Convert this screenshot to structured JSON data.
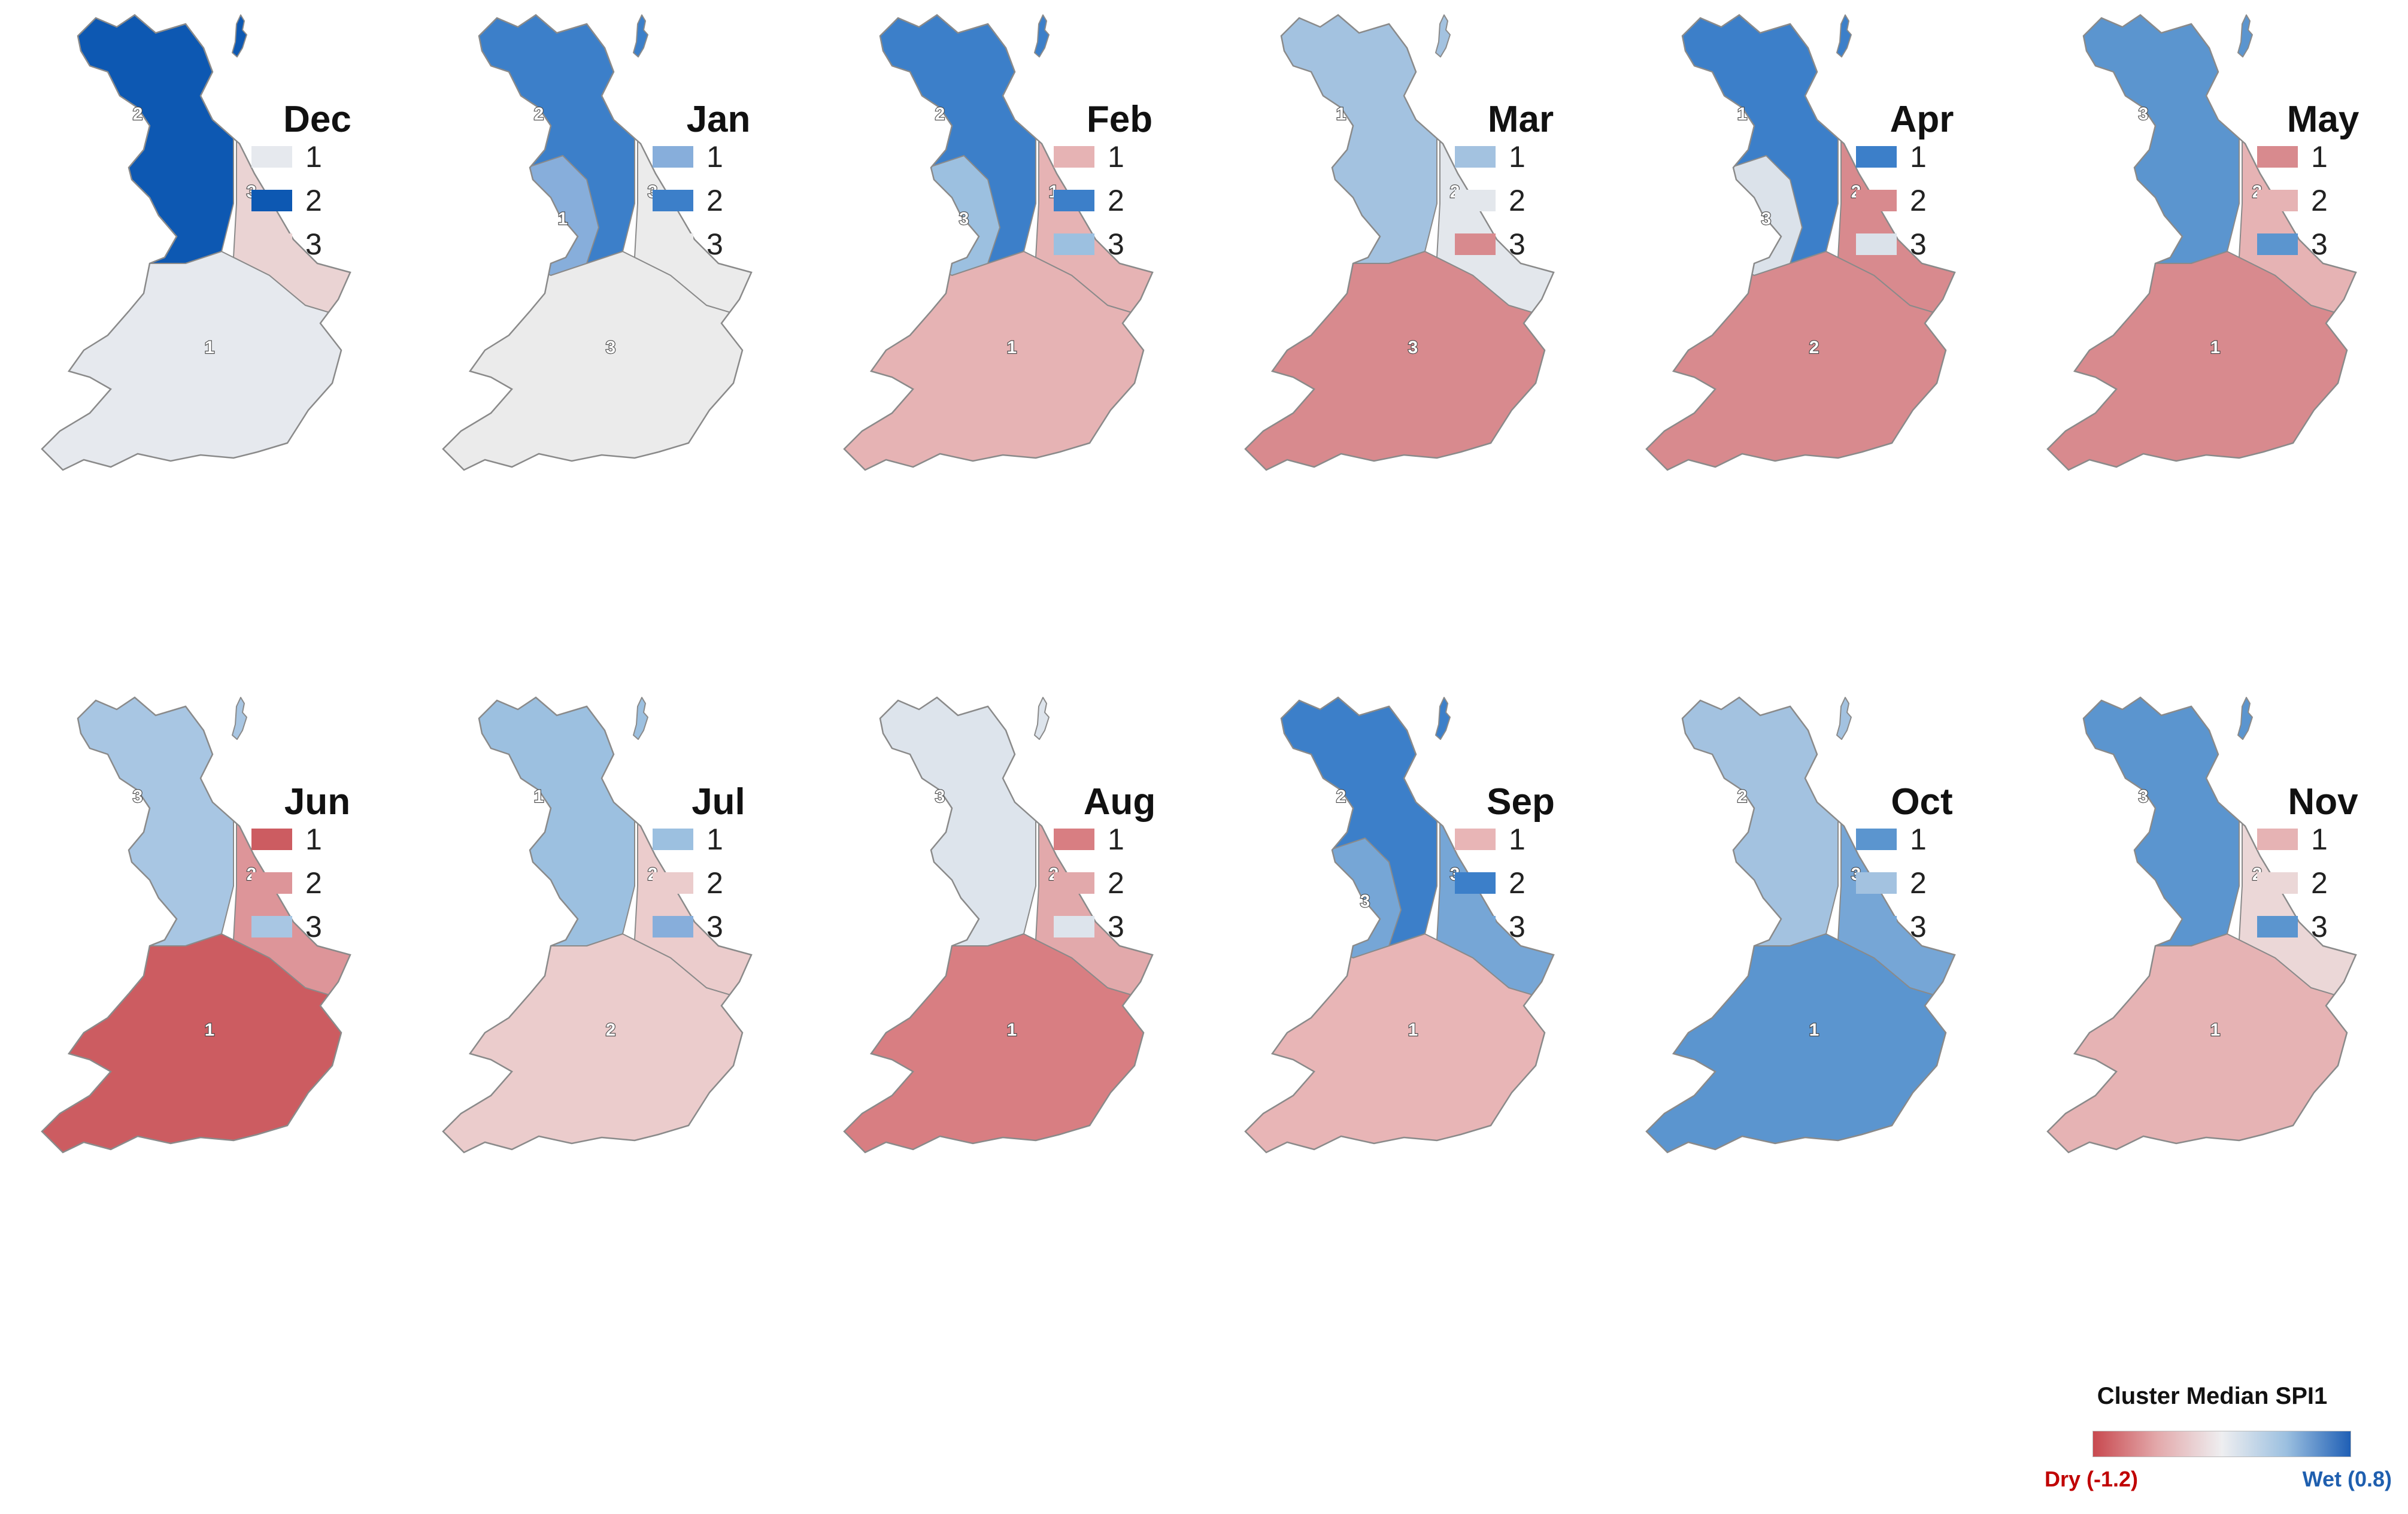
{
  "colors": {
    "dry": "#c8494f",
    "wet": "#1f5fb5",
    "outline": "#8a8a8a"
  },
  "panels": [
    {
      "month": "Dec",
      "legend": [
        {
          "n": "1",
          "color": "#e6e9ee"
        },
        {
          "n": "2",
          "color": "#0d58b2"
        },
        {
          "n": "3",
          "color": "#ead3d3"
        }
      ],
      "regions": {
        "north": "2",
        "east": "3",
        "south": "1"
      }
    },
    {
      "month": "Jan",
      "legend": [
        {
          "n": "1",
          "color": "#87aedb"
        },
        {
          "n": "2",
          "color": "#3c7fc9"
        },
        {
          "n": "3",
          "color": "#ebebeb"
        }
      ],
      "regions": {
        "north": "2",
        "east": "3",
        "south": "3",
        "west": "1"
      }
    },
    {
      "month": "Feb",
      "legend": [
        {
          "n": "1",
          "color": "#e6b3b4"
        },
        {
          "n": "2",
          "color": "#3c7fc9"
        },
        {
          "n": "3",
          "color": "#9cc0e0"
        }
      ],
      "regions": {
        "north": "2",
        "east": "1",
        "south": "1",
        "west": "3"
      }
    },
    {
      "month": "Mar",
      "legend": [
        {
          "n": "1",
          "color": "#a3c2e0"
        },
        {
          "n": "2",
          "color": "#e3e7ec"
        },
        {
          "n": "3",
          "color": "#d88a8e"
        }
      ],
      "regions": {
        "north": "1",
        "east": "2",
        "south": "3"
      }
    },
    {
      "month": "Apr",
      "legend": [
        {
          "n": "1",
          "color": "#3c7fc9"
        },
        {
          "n": "2",
          "color": "#d88a8e"
        },
        {
          "n": "3",
          "color": "#dbe2ea"
        }
      ],
      "regions": {
        "north": "1",
        "east": "2",
        "south": "2",
        "west": "3"
      }
    },
    {
      "month": "May",
      "legend": [
        {
          "n": "1",
          "color": "#d88a8e"
        },
        {
          "n": "2",
          "color": "#e6b3b4"
        },
        {
          "n": "3",
          "color": "#5b95cf"
        }
      ],
      "regions": {
        "north": "3",
        "east": "2",
        "south": "1"
      }
    },
    {
      "month": "Jun",
      "legend": [
        {
          "n": "1",
          "color": "#cc5c61"
        },
        {
          "n": "2",
          "color": "#dd9599"
        },
        {
          "n": "3",
          "color": "#a8c6e3"
        }
      ],
      "regions": {
        "north": "3",
        "east": "2",
        "south": "1"
      }
    },
    {
      "month": "Jul",
      "legend": [
        {
          "n": "1",
          "color": "#9cc0e0"
        },
        {
          "n": "2",
          "color": "#ebcccc"
        },
        {
          "n": "3",
          "color": "#87aedb"
        }
      ],
      "regions": {
        "north": "1",
        "east": "2",
        "south": "2"
      }
    },
    {
      "month": "Aug",
      "legend": [
        {
          "n": "1",
          "color": "#d87e82"
        },
        {
          "n": "2",
          "color": "#e2a9ab"
        },
        {
          "n": "3",
          "color": "#dde4ec"
        }
      ],
      "regions": {
        "north": "3",
        "east": "2",
        "south": "1"
      }
    },
    {
      "month": "Sep",
      "legend": [
        {
          "n": "1",
          "color": "#e8b5b6"
        },
        {
          "n": "2",
          "color": "#3c7fc9"
        },
        {
          "n": "3",
          "color": "#76a6d6"
        }
      ],
      "regions": {
        "north": "2",
        "east": "3",
        "south": "1",
        "west": "3"
      }
    },
    {
      "month": "Oct",
      "legend": [
        {
          "n": "1",
          "color": "#5b95cf"
        },
        {
          "n": "2",
          "color": "#a3c2e0"
        },
        {
          "n": "3",
          "color": "#76a6d6"
        }
      ],
      "regions": {
        "north": "2",
        "east": "3",
        "south": "1"
      }
    },
    {
      "month": "Nov",
      "legend": [
        {
          "n": "1",
          "color": "#e6b3b4"
        },
        {
          "n": "2",
          "color": "#ebd7d7"
        },
        {
          "n": "3",
          "color": "#5b95cf"
        }
      ],
      "regions": {
        "north": "3",
        "east": "2",
        "south": "1"
      }
    }
  ],
  "scale_legend": {
    "title": "Cluster Median SPI1",
    "dry_label": "Dry (-1.2)",
    "wet_label": "Wet (0.8)",
    "min": -1.2,
    "max": 0.8,
    "gradient": [
      "#c8494f",
      "#e3a9ab",
      "#eeeef0",
      "#9cc0e0",
      "#1f5fb5"
    ]
  }
}
